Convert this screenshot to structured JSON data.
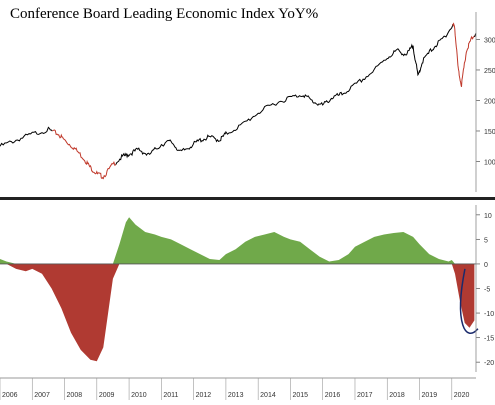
{
  "chart_data": [
    {
      "type": "line",
      "title": "Conference Board Leading Economic Index YoY%",
      "x_range": [
        2006.0,
        2020.75
      ],
      "ylim": [
        50,
        345
      ],
      "yticks": [
        100,
        150,
        200,
        250,
        300
      ],
      "contraction_color": "#c0392b",
      "line_color": "#000000",
      "series": [
        {
          "x": [
            2006.0,
            2006.5,
            2007.0,
            2007.5,
            2007.8,
            2008.0,
            2008.3,
            2008.6,
            2008.8,
            2009.0,
            2009.2,
            2009.5,
            2009.8,
            2010.0,
            2010.3,
            2010.6,
            2011.0,
            2011.3,
            2011.6,
            2011.9,
            2012.2,
            2012.5,
            2012.8,
            2013.0,
            2013.5,
            2014.0,
            2014.5,
            2015.0,
            2015.4,
            2015.7,
            2016.0,
            2016.3,
            2016.6,
            2017.0,
            2017.5,
            2018.0,
            2018.3,
            2018.6,
            2018.8,
            2018.95,
            2019.1,
            2019.4,
            2019.7,
            2020.0,
            2020.08,
            2020.2,
            2020.3,
            2020.45,
            2020.6,
            2020.75
          ],
          "values": [
            125,
            135,
            145,
            152,
            145,
            135,
            122,
            105,
            90,
            80,
            75,
            95,
            108,
            112,
            120,
            110,
            128,
            133,
            115,
            125,
            135,
            140,
            135,
            145,
            160,
            180,
            195,
            205,
            210,
            198,
            192,
            205,
            210,
            225,
            245,
            270,
            282,
            275,
            290,
            240,
            265,
            285,
            300,
            320,
            325,
            250,
            225,
            280,
            300,
            310
          ]
        }
      ]
    },
    {
      "type": "area",
      "ylim": [
        -22,
        12
      ],
      "yticks": [
        10,
        5,
        0,
        -5,
        -10,
        -15,
        -20
      ],
      "x_range": [
        2006.0,
        2020.75
      ],
      "categories": [
        "2006",
        "2007",
        "2008",
        "2009",
        "2010",
        "2011",
        "2012",
        "2013",
        "2014",
        "2015",
        "2016",
        "2017",
        "2018",
        "2019",
        "2020"
      ],
      "positive_color": "#70a94a",
      "negative_color": "#b03a32",
      "series": [
        {
          "x": [
            2006.0,
            2006.2,
            2006.5,
            2006.8,
            2007.0,
            2007.3,
            2007.6,
            2007.9,
            2008.2,
            2008.5,
            2008.8,
            2009.0,
            2009.2,
            2009.35,
            2009.5,
            2009.7,
            2009.9,
            2010.0,
            2010.2,
            2010.5,
            2010.8,
            2011.0,
            2011.3,
            2011.6,
            2011.9,
            2012.2,
            2012.5,
            2012.8,
            2013.0,
            2013.3,
            2013.6,
            2013.9,
            2014.2,
            2014.5,
            2014.8,
            2015.0,
            2015.3,
            2015.6,
            2015.9,
            2016.2,
            2016.5,
            2016.8,
            2017.0,
            2017.3,
            2017.6,
            2017.9,
            2018.2,
            2018.5,
            2018.8,
            2019.0,
            2019.3,
            2019.6,
            2019.9,
            2020.0,
            2020.1,
            2020.25,
            2020.4,
            2020.55,
            2020.7
          ],
          "values": [
            1.0,
            0.5,
            -1.0,
            -1.5,
            -1.0,
            -2.0,
            -5.0,
            -9.0,
            -14.0,
            -17.5,
            -19.5,
            -19.8,
            -17.0,
            -10.0,
            -3.0,
            4.0,
            8.5,
            9.5,
            8.0,
            6.5,
            6.0,
            5.5,
            5.0,
            4.0,
            3.0,
            2.0,
            1.0,
            0.8,
            2.0,
            3.0,
            4.5,
            5.5,
            6.0,
            6.5,
            5.5,
            5.0,
            4.5,
            3.0,
            1.5,
            0.5,
            0.8,
            2.0,
            3.5,
            4.5,
            5.5,
            6.0,
            6.3,
            6.5,
            5.5,
            4.0,
            2.0,
            1.0,
            0.5,
            0.8,
            -2.0,
            -7.5,
            -12.0,
            -13.0,
            -11.5
          ]
        }
      ]
    }
  ]
}
